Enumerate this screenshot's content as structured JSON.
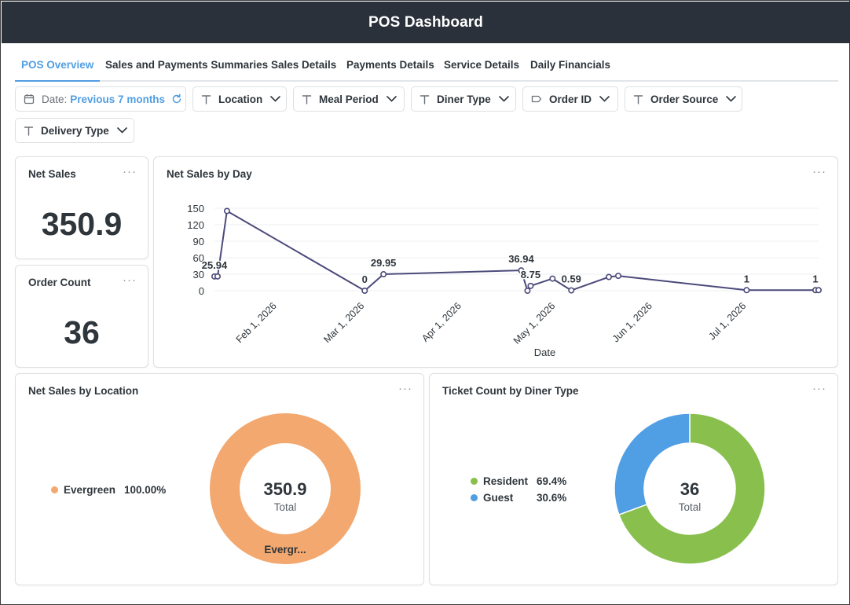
{
  "header": {
    "title": "POS Dashboard"
  },
  "tabs": [
    {
      "label": "POS Overview",
      "active": true
    },
    {
      "label": "Sales and Payments Summaries"
    },
    {
      "label": "Sales Details"
    },
    {
      "label": "Payments Details"
    },
    {
      "label": "Service Details"
    },
    {
      "label": "Daily Financials"
    }
  ],
  "filters": {
    "date": {
      "label": "Date:",
      "value": "Previous 7 months"
    },
    "location": "Location",
    "meal_period": "Meal Period",
    "diner_type": "Diner Type",
    "order_id": "Order ID",
    "order_source": "Order Source",
    "delivery_type": "Delivery Type"
  },
  "cards": {
    "net_sales": {
      "title": "Net Sales",
      "value": "350.9"
    },
    "order_count": {
      "title": "Order Count",
      "value": "36"
    },
    "net_sales_by_day": {
      "title": "Net Sales by Day"
    },
    "net_sales_by_location": {
      "title": "Net Sales by Location",
      "legend": [
        {
          "name": "Evergreen",
          "pct": "100.00%",
          "color": "#f2a86f"
        }
      ],
      "center_value": "350.9",
      "center_label": "Total",
      "slice_label": "Evergr..."
    },
    "ticket_count_by_diner_type": {
      "title": "Ticket Count by Diner Type",
      "legend": [
        {
          "name": "Resident",
          "pct": "69.4%",
          "color": "#88bf4d"
        },
        {
          "name": "Guest",
          "pct": "30.6%",
          "color": "#509ee3"
        }
      ],
      "center_value": "36",
      "center_label": "Total"
    }
  },
  "chart_data": [
    {
      "type": "line",
      "title": "Net Sales by Day",
      "xlabel": "Date",
      "ylabel": "",
      "ylim": [
        0,
        150
      ],
      "y_ticks": [
        "0",
        "30",
        "60",
        "90",
        "120",
        "150"
      ],
      "x_ticks": [
        "Feb 1, 2026",
        "Mar 1, 2026",
        "Apr 1, 2026",
        "May 1, 2026",
        "Jun 1, 2026",
        "Jul 1, 2026"
      ],
      "x_range": [
        "2026-01-12",
        "2026-07-24"
      ],
      "grid": true,
      "color": "#4c4a7a",
      "series": [
        {
          "values": [
            {
              "x": "2026-01-12",
              "y": 25.94,
              "label": "25.94"
            },
            {
              "x": "2026-01-13",
              "y": 25.94
            },
            {
              "x": "2026-01-16",
              "y": 145
            },
            {
              "x": "2026-03-01",
              "y": 0,
              "label": "0"
            },
            {
              "x": "2026-03-07",
              "y": 29.95,
              "label": "29.95"
            },
            {
              "x": "2026-04-20",
              "y": 36.94,
              "label": "36.94"
            },
            {
              "x": "2026-04-22",
              "y": 0
            },
            {
              "x": "2026-04-23",
              "y": 8.75,
              "label": "8.75"
            },
            {
              "x": "2026-04-30",
              "y": 22
            },
            {
              "x": "2026-05-06",
              "y": 0.59,
              "label": "0.59"
            },
            {
              "x": "2026-05-18",
              "y": 25
            },
            {
              "x": "2026-05-21",
              "y": 27
            },
            {
              "x": "2026-07-01",
              "y": 1,
              "label": "1"
            },
            {
              "x": "2026-07-23",
              "y": 1,
              "label": "1"
            },
            {
              "x": "2026-07-24",
              "y": 1
            }
          ]
        }
      ]
    },
    {
      "type": "pie",
      "title": "Net Sales by Location",
      "slices": [
        {
          "name": "Evergreen",
          "value": 350.9,
          "pct": 100.0
        }
      ],
      "total": 350.9
    },
    {
      "type": "pie",
      "title": "Ticket Count by Diner Type",
      "slices": [
        {
          "name": "Resident",
          "value": 25,
          "pct": 69.4
        },
        {
          "name": "Guest",
          "value": 11,
          "pct": 30.6
        }
      ],
      "total": 36
    }
  ]
}
